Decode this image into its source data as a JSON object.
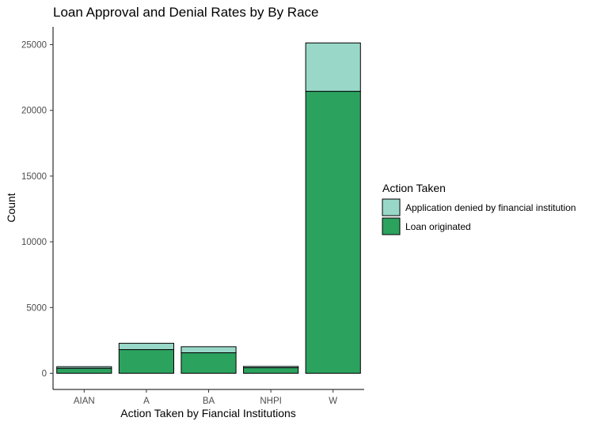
{
  "chart_data": {
    "type": "bar",
    "stacked": true,
    "title": "Loan Approval and Denial Rates by By Race",
    "xlabel": "Action Taken by Fiancial Institutions",
    "ylabel": "Count",
    "categories": [
      "AIAN",
      "A",
      "BA",
      "NHPI",
      "W"
    ],
    "ylim": [
      0,
      26000
    ],
    "yticks": [
      0,
      5000,
      10000,
      15000,
      20000,
      25000
    ],
    "grid": false,
    "legend": {
      "title": "Action Taken",
      "placement": "right"
    },
    "series": [
      {
        "name": "Loan originated",
        "color": "#2ca25f",
        "values": [
          380,
          1800,
          1560,
          420,
          21450
        ]
      },
      {
        "name": "Application denied by financial institution",
        "color": "#99d8c9",
        "values": [
          120,
          480,
          460,
          100,
          3680
        ]
      }
    ]
  }
}
